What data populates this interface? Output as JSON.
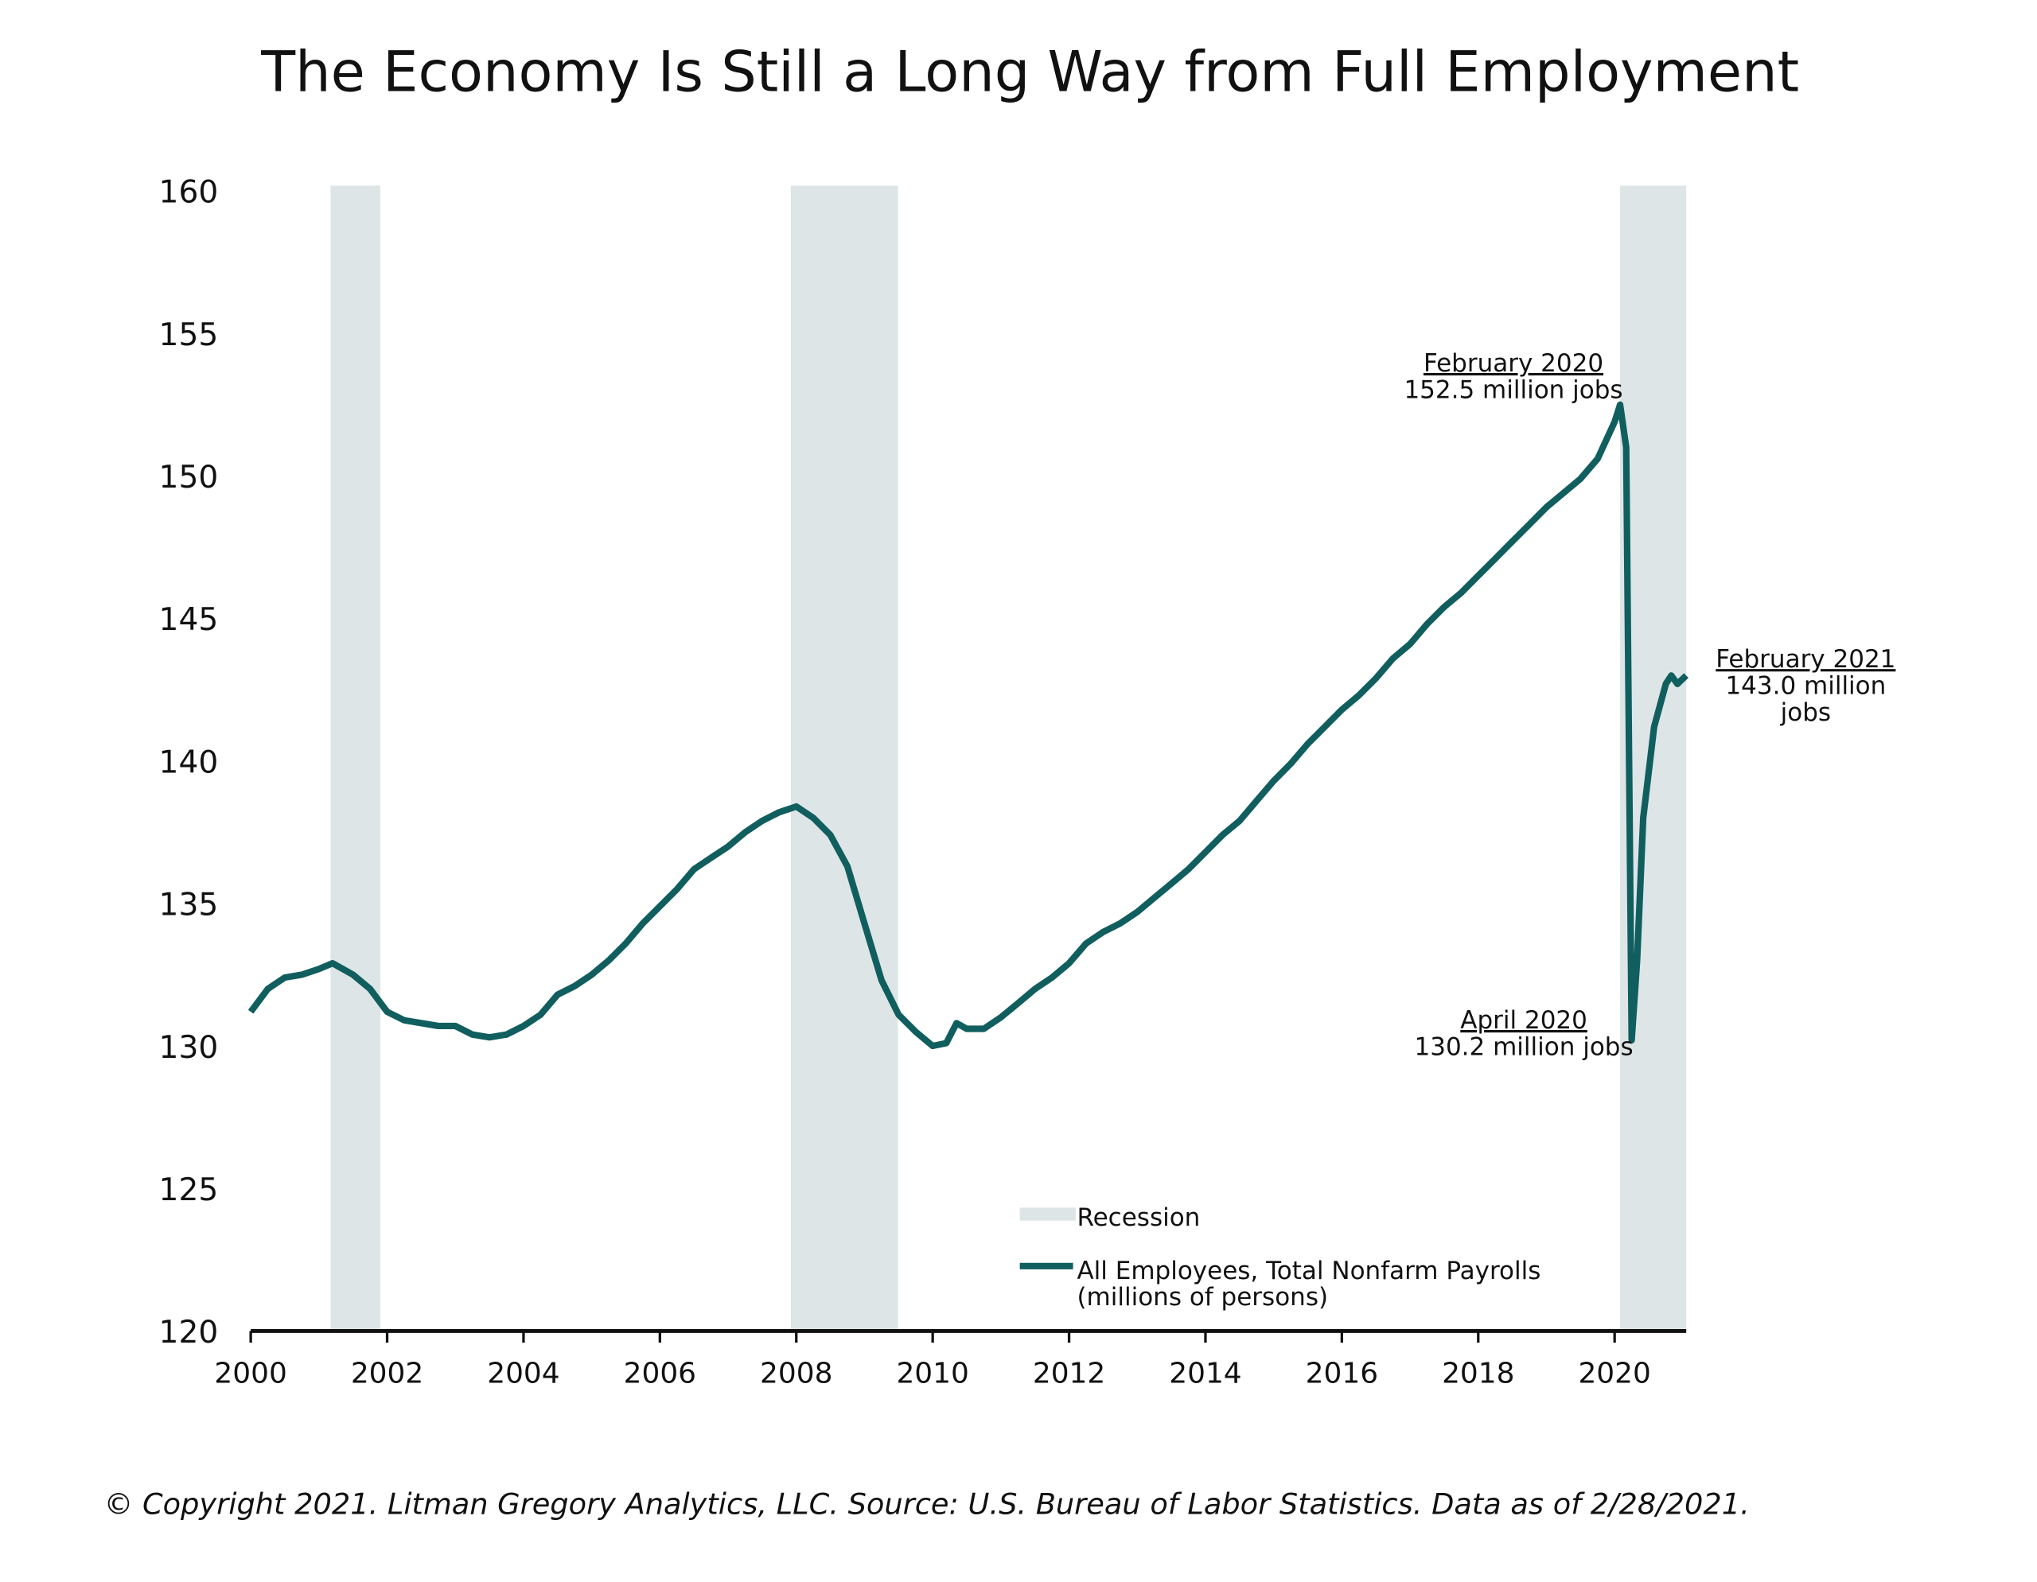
{
  "chart_data": {
    "type": "line",
    "title": "The Economy Is Still a Long Way from Full Employment",
    "x": [
      2000.0,
      2000.25,
      2000.5,
      2000.75,
      2001.0,
      2001.2,
      2001.5,
      2001.75,
      2002.0,
      2002.25,
      2002.5,
      2002.75,
      2003.0,
      2003.25,
      2003.5,
      2003.75,
      2004.0,
      2004.25,
      2004.5,
      2004.75,
      2005.0,
      2005.25,
      2005.5,
      2005.75,
      2006.0,
      2006.25,
      2006.5,
      2006.75,
      2007.0,
      2007.25,
      2007.5,
      2007.75,
      2008.0,
      2008.25,
      2008.5,
      2008.75,
      2009.0,
      2009.25,
      2009.5,
      2009.75,
      2010.0,
      2010.2,
      2010.35,
      2010.5,
      2010.75,
      2011.0,
      2011.25,
      2011.5,
      2011.75,
      2012.0,
      2012.25,
      2012.5,
      2012.75,
      2013.0,
      2013.25,
      2013.5,
      2013.75,
      2014.0,
      2014.25,
      2014.5,
      2014.75,
      2015.0,
      2015.25,
      2015.5,
      2015.75,
      2016.0,
      2016.25,
      2016.5,
      2016.75,
      2017.0,
      2017.25,
      2017.5,
      2017.75,
      2018.0,
      2018.25,
      2018.5,
      2018.75,
      2019.0,
      2019.25,
      2019.5,
      2019.75,
      2020.0,
      2020.08,
      2020.17,
      2020.25,
      2020.33,
      2020.42,
      2020.58,
      2020.75,
      2020.83,
      2020.92,
      2021.05
    ],
    "series": [
      {
        "name": "All Employees, Total Nonfarm Payrolls",
        "color": "#115e5f",
        "values": [
          131.2,
          132.0,
          132.4,
          132.5,
          132.7,
          132.9,
          132.5,
          132.0,
          131.2,
          130.9,
          130.8,
          130.7,
          130.7,
          130.4,
          130.3,
          130.4,
          130.7,
          131.1,
          131.8,
          132.1,
          132.5,
          133.0,
          133.6,
          134.3,
          134.9,
          135.5,
          136.2,
          136.6,
          137.0,
          137.5,
          137.9,
          138.2,
          138.4,
          138.0,
          137.4,
          136.3,
          134.3,
          132.3,
          131.1,
          130.5,
          130.0,
          130.1,
          130.8,
          130.6,
          130.6,
          131.0,
          131.5,
          132.0,
          132.4,
          132.9,
          133.6,
          134.0,
          134.3,
          134.7,
          135.2,
          135.7,
          136.2,
          136.8,
          137.4,
          137.9,
          138.6,
          139.3,
          139.9,
          140.6,
          141.2,
          141.8,
          142.3,
          142.9,
          143.6,
          144.1,
          144.8,
          145.4,
          145.9,
          146.5,
          147.1,
          147.7,
          148.3,
          148.9,
          149.4,
          149.9,
          150.6,
          151.9,
          152.5,
          151.0,
          130.2,
          133.0,
          138.0,
          141.2,
          142.7,
          143.0,
          142.7,
          143.0
        ]
      }
    ],
    "series_note": "(millions of persons)",
    "recession_label": "Recession",
    "recession_color": "#dde5e6",
    "recessions": [
      [
        2001.17,
        2001.9
      ],
      [
        2007.92,
        2009.49
      ],
      [
        2020.08,
        2021.05
      ]
    ],
    "annotations": [
      {
        "lines": [
          "February 2020",
          "152.5 million jobs"
        ]
      },
      {
        "lines": [
          "April 2020",
          "130.2 million jobs"
        ]
      },
      {
        "lines": [
          "February 2021",
          "143.0 million",
          "jobs"
        ]
      }
    ],
    "xlim": [
      2000,
      2021.05
    ],
    "xticks": [
      2000,
      2002,
      2004,
      2006,
      2008,
      2010,
      2012,
      2014,
      2016,
      2018,
      2020
    ],
    "ylim": [
      120,
      160
    ],
    "yticks": [
      120,
      125,
      130,
      135,
      140,
      145,
      150,
      155,
      160
    ],
    "footer": "© Copyright 2021. Litman Gregory Analytics, LLC. Source: U.S. Bureau of Labor Statistics. Data as of 2/28/2021."
  }
}
